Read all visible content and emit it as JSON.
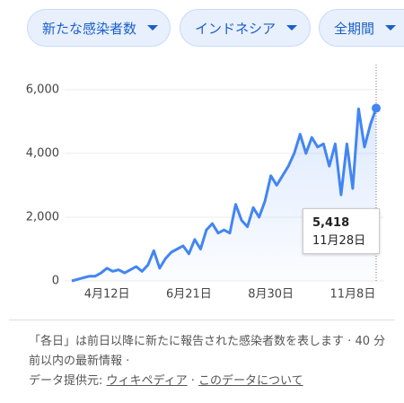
{
  "chips": [
    "新たな感染者数",
    "インドネシア",
    "全期間"
  ],
  "chart_data": {
    "type": "line",
    "categories": [
      null,
      null,
      null,
      null,
      null,
      null,
      "4月12日",
      null,
      null,
      null,
      null,
      null,
      null,
      null,
      null,
      null,
      null,
      null,
      null,
      null,
      "6月21日",
      null,
      null,
      null,
      null,
      null,
      null,
      null,
      null,
      null,
      null,
      null,
      null,
      null,
      "8月30日",
      null,
      null,
      null,
      null,
      null,
      null,
      null,
      null,
      null,
      null,
      null,
      null,
      null,
      "11月8日",
      null,
      null,
      null,
      null
    ],
    "values": [
      0,
      50,
      100,
      150,
      150,
      250,
      400,
      300,
      350,
      250,
      350,
      450,
      300,
      500,
      950,
      400,
      700,
      900,
      1000,
      1100,
      850,
      1300,
      1000,
      1600,
      1800,
      1500,
      1600,
      1500,
      2400,
      1900,
      1700,
      2300,
      2000,
      2500,
      3300,
      3000,
      3300,
      3600,
      4000,
      4600,
      4000,
      4500,
      4200,
      4300,
      3600,
      4300,
      2700,
      4300,
      2900,
      5400,
      4200,
      4900,
      5418
    ],
    "color": "#4285f4",
    "ylim": [
      0,
      6700
    ],
    "yticks": [
      0,
      {
        "value": 2000,
        "label": "2,000"
      },
      {
        "value": 4000,
        "label": "4,000"
      },
      {
        "value": 6000,
        "label": "6,000"
      }
    ],
    "grid": true,
    "tooltip": {
      "value": "5,418",
      "date": "11月28日"
    }
  },
  "footer": {
    "note": "「各日」は前日以降に新たに報告された感染者数を表します",
    "separator": "·",
    "updated": "40 分前以内の最新情報",
    "source_label": "データ提供元:",
    "source_link": "ウィキペディア",
    "about_link": "このデータについて"
  }
}
